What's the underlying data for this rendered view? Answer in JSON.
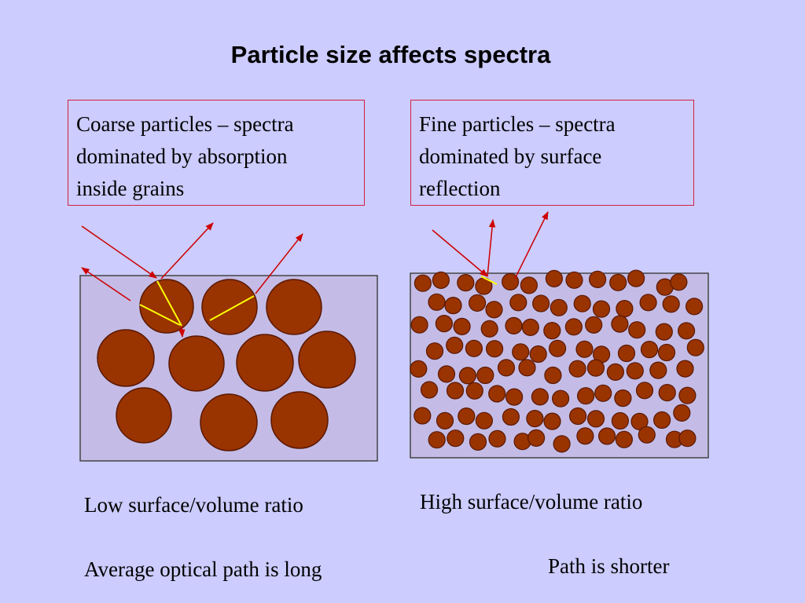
{
  "title": "Particle size affects spectra",
  "panels": [
    {
      "caption": [
        "Coarse particles – spectra",
        "dominated by absorption",
        "inside grains"
      ],
      "ratio": "Low surface/volume ratio",
      "path": "Average optical path is long"
    },
    {
      "caption": [
        "Fine particles – spectra",
        "dominated by surface",
        "reflection"
      ],
      "ratio": "High surface/volume ratio",
      "path": "Path is shorter"
    }
  ]
}
